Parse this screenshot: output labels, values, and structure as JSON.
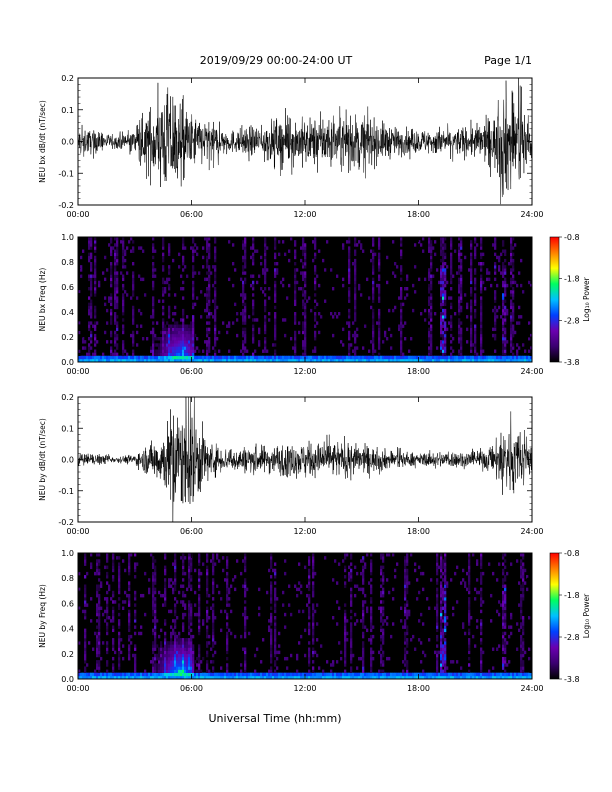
{
  "header": {
    "date_range": "2019/09/29  00:00-24:00 UT",
    "page": "Page 1/1"
  },
  "footer": {
    "xlabel": "Universal Time (hh:mm)"
  },
  "colors": {
    "trace": "#000000",
    "spectrogram_background": "#000000",
    "colorscale": [
      "#000000",
      "#3a0070",
      "#6a00b0",
      "#0040ff",
      "#00c0ff",
      "#00ff60",
      "#ffff00",
      "#ff8000",
      "#ff0000"
    ]
  },
  "chart_data": [
    {
      "type": "line",
      "ylabel": "NEU bx dB/dt (nT/sec)",
      "xticks": [
        "00:00",
        "06:00",
        "12:00",
        "18:00",
        "24:00"
      ],
      "xlim": [
        0,
        24
      ],
      "ylim": [
        -0.2,
        0.2
      ],
      "yticks": [
        "0.2",
        "0.1",
        "0.0",
        "-0.1",
        "-0.2"
      ],
      "series": [
        {
          "x_hours": [
            0,
            1,
            2,
            3,
            4,
            4.5,
            5,
            5.5,
            6,
            7,
            8,
            9,
            10,
            11,
            12,
            13,
            14,
            15,
            16,
            17,
            18,
            19,
            20,
            21,
            22,
            22.5,
            23,
            24
          ],
          "amplitude_nT_per_s": [
            0.05,
            0.04,
            0.02,
            0.05,
            0.14,
            0.18,
            0.2,
            0.15,
            0.1,
            0.07,
            0.04,
            0.05,
            0.07,
            0.09,
            0.08,
            0.09,
            0.09,
            0.1,
            0.07,
            0.05,
            0.04,
            0.05,
            0.05,
            0.06,
            0.09,
            0.2,
            0.2,
            0.06
          ]
        }
      ]
    },
    {
      "type": "heatmap",
      "ylabel": "NEU bx Freq (Hz)",
      "xticks": [
        "00:00",
        "06:00",
        "12:00",
        "18:00",
        "24:00"
      ],
      "xlim": [
        0,
        24
      ],
      "ylim": [
        0,
        1
      ],
      "yticks": [
        "1.0",
        "0.8",
        "0.6",
        "0.4",
        "0.2",
        "0.0"
      ],
      "colorbar": {
        "label": "Log₁₀ Power",
        "ticks": [
          "-0.8",
          "-1.8",
          "-2.8",
          "-3.8"
        ],
        "range": [
          -3.8,
          -0.8
        ]
      }
    },
    {
      "type": "line",
      "ylabel": "NEU by dB/dt (nT/sec)",
      "xticks": [
        "00:00",
        "06:00",
        "12:00",
        "18:00",
        "24:00"
      ],
      "xlim": [
        0,
        24
      ],
      "ylim": [
        -0.2,
        0.2
      ],
      "yticks": [
        "0.2",
        "0.1",
        "0.0",
        "-0.1",
        "-0.2"
      ],
      "series": [
        {
          "x_hours": [
            0,
            1,
            2,
            3,
            4,
            4.5,
            5,
            5.5,
            6,
            7,
            8,
            9,
            10,
            11,
            12,
            13,
            14,
            15,
            16,
            17,
            18,
            19,
            20,
            21,
            22,
            22.5,
            23,
            24
          ],
          "amplitude_nT_per_s": [
            0.02,
            0.02,
            0.01,
            0.02,
            0.07,
            0.1,
            0.2,
            0.18,
            0.2,
            0.06,
            0.04,
            0.05,
            0.05,
            0.06,
            0.06,
            0.06,
            0.07,
            0.05,
            0.04,
            0.03,
            0.02,
            0.03,
            0.03,
            0.03,
            0.05,
            0.15,
            0.12,
            0.05
          ]
        }
      ]
    },
    {
      "type": "heatmap",
      "ylabel": "NEU by Freq (Hz)",
      "xticks": [
        "00:00",
        "06:00",
        "12:00",
        "18:00",
        "24:00"
      ],
      "xlim": [
        0,
        24
      ],
      "ylim": [
        0,
        1
      ],
      "yticks": [
        "1.0",
        "0.8",
        "0.6",
        "0.4",
        "0.2",
        "0.0"
      ],
      "colorbar": {
        "label": "Log₁₀ Power",
        "ticks": [
          "-0.8",
          "-1.8",
          "-2.8",
          "-3.8"
        ],
        "range": [
          -3.8,
          -0.8
        ]
      }
    }
  ]
}
